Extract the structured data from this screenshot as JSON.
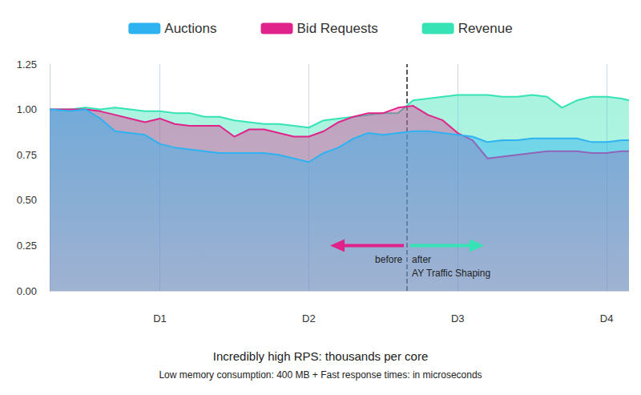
{
  "chart_data": {
    "type": "area",
    "title": "Incredibly high RPS: thousands per core",
    "subtitle": "Low memory consumption: 400 MB + Fast response times: in microseconds",
    "x": [
      0.26,
      0.4,
      0.5,
      0.6,
      0.7,
      0.8,
      0.9,
      1.0,
      1.1,
      1.2,
      1.3,
      1.4,
      1.5,
      1.6,
      1.7,
      1.8,
      1.9,
      2.0,
      2.1,
      2.2,
      2.3,
      2.4,
      2.5,
      2.6,
      2.7,
      2.8,
      2.9,
      3.0,
      3.1,
      3.2,
      3.3,
      3.4,
      3.5,
      3.6,
      3.7,
      3.8,
      3.9,
      4.0,
      4.1,
      4.15
    ],
    "xlim": [
      0.26,
      4.15
    ],
    "xticks": [
      {
        "value": 1,
        "label": "D1"
      },
      {
        "value": 2,
        "label": "D2"
      },
      {
        "value": 3,
        "label": "D3"
      },
      {
        "value": 4,
        "label": "D4"
      }
    ],
    "ylim": [
      0,
      1.25
    ],
    "yticks": [
      {
        "value": 0,
        "label": "0.00"
      },
      0.25,
      {
        "value": 0.5,
        "label": "0.50"
      },
      0.75,
      {
        "value": 1,
        "label": "1.00"
      },
      1.25
    ],
    "series": [
      {
        "name": "Auctions",
        "color": "#2fb2f0",
        "values": [
          1.0,
          0.99,
          1.0,
          0.95,
          0.88,
          0.87,
          0.86,
          0.81,
          0.79,
          0.78,
          0.77,
          0.76,
          0.76,
          0.76,
          0.76,
          0.75,
          0.73,
          0.71,
          0.76,
          0.79,
          0.84,
          0.87,
          0.86,
          0.87,
          0.88,
          0.88,
          0.87,
          0.86,
          0.85,
          0.82,
          0.83,
          0.83,
          0.84,
          0.84,
          0.84,
          0.84,
          0.82,
          0.82,
          0.83,
          0.83
        ]
      },
      {
        "name": "Bid Requests",
        "color": "#e0238a",
        "values": [
          1.0,
          1.0,
          1.0,
          0.99,
          0.97,
          0.95,
          0.93,
          0.95,
          0.92,
          0.91,
          0.91,
          0.91,
          0.85,
          0.89,
          0.89,
          0.87,
          0.85,
          0.85,
          0.88,
          0.93,
          0.96,
          0.98,
          0.98,
          1.01,
          1.02,
          0.97,
          0.94,
          0.87,
          0.83,
          0.73,
          0.74,
          0.75,
          0.76,
          0.77,
          0.77,
          0.77,
          0.76,
          0.76,
          0.77,
          0.77
        ]
      },
      {
        "name": "Revenue",
        "color": "#35e3b4",
        "values": [
          1.0,
          1.0,
          1.01,
          1.0,
          1.01,
          1.0,
          0.99,
          0.99,
          0.98,
          0.98,
          0.96,
          0.96,
          0.94,
          0.93,
          0.92,
          0.92,
          0.91,
          0.9,
          0.94,
          0.95,
          0.96,
          0.97,
          0.98,
          0.98,
          1.05,
          1.06,
          1.07,
          1.08,
          1.08,
          1.08,
          1.07,
          1.07,
          1.08,
          1.07,
          1.01,
          1.05,
          1.07,
          1.07,
          1.06,
          1.05
        ]
      }
    ],
    "grid": true,
    "legend": "top",
    "divider": {
      "x": 2.66,
      "y": 0.25,
      "before": "before",
      "after": "after",
      "label": "AY Traffic Shaping"
    }
  }
}
